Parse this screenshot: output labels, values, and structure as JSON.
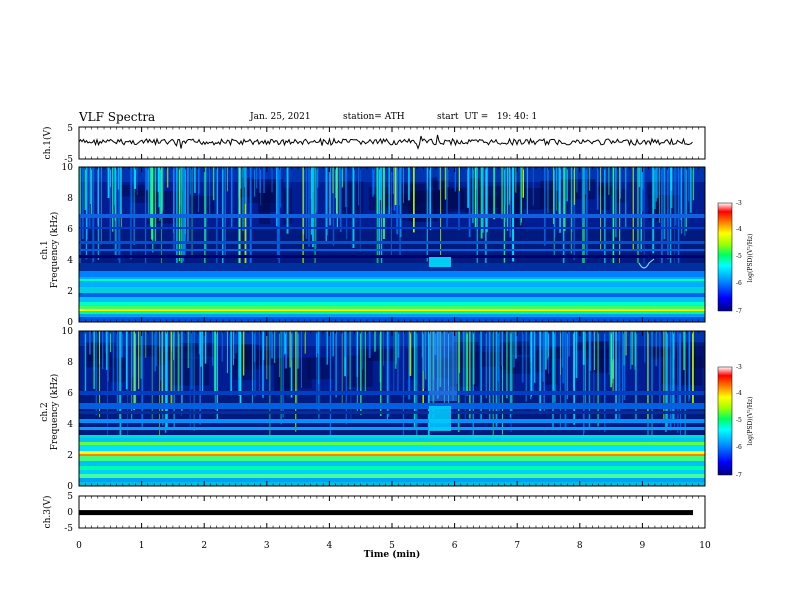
{
  "header": {
    "title": "VLF Spectra",
    "date": "Jan. 25, 2021",
    "station": "station= ATH",
    "start": "start  UT =   19: 40: 1"
  },
  "chart_data": [
    {
      "type": "line",
      "panel": "ch1-waveform",
      "ylabel": "ch.1(V)",
      "ylim": [
        -5,
        5
      ],
      "yticks": [
        "5",
        "-5"
      ],
      "xlim": [
        0,
        10
      ],
      "xunits": "min"
    },
    {
      "type": "heatmap",
      "panel": "ch1-spectrogram",
      "ylabel": "ch.1\nFrequency (kHz)",
      "ylabel_line1": "ch.1",
      "ylabel_line2": "Frequency (kHz)",
      "ylim": [
        0,
        10
      ],
      "yticks": [
        "0",
        "2",
        "4",
        "6",
        "8",
        "10"
      ],
      "xlim": [
        0,
        10
      ]
    },
    {
      "type": "heatmap",
      "panel": "ch2-spectrogram",
      "ylabel_line1": "ch.2",
      "ylabel_line2": "Frequency (kHz)",
      "ylim": [
        0,
        10
      ],
      "yticks": [
        "0",
        "2",
        "4",
        "6",
        "8",
        "10"
      ],
      "xlim": [
        0,
        10
      ]
    },
    {
      "type": "line",
      "panel": "ch3-waveform",
      "ylabel": "ch.3(V)",
      "ylim": [
        -5,
        5
      ],
      "yticks": [
        "5",
        "0",
        "-5"
      ],
      "xlim": [
        0,
        10
      ],
      "xlabel": "Time (min)",
      "xticks": [
        "0",
        "1",
        "2",
        "3",
        "4",
        "5",
        "6",
        "7",
        "8",
        "9",
        "10"
      ],
      "value_level": -0.2
    }
  ],
  "colorbar": {
    "label": "log(PSD)(V²/Hz)",
    "range": [
      -7,
      -3
    ],
    "ticks": [
      "-3",
      "-4",
      "-5",
      "-6",
      "-7"
    ],
    "colors": [
      "#000080",
      "#0000ff",
      "#00a0ff",
      "#00ffff",
      "#00ff60",
      "#a0ff00",
      "#ffff00",
      "#ff8000",
      "#ff0000",
      "#ffffff"
    ]
  }
}
